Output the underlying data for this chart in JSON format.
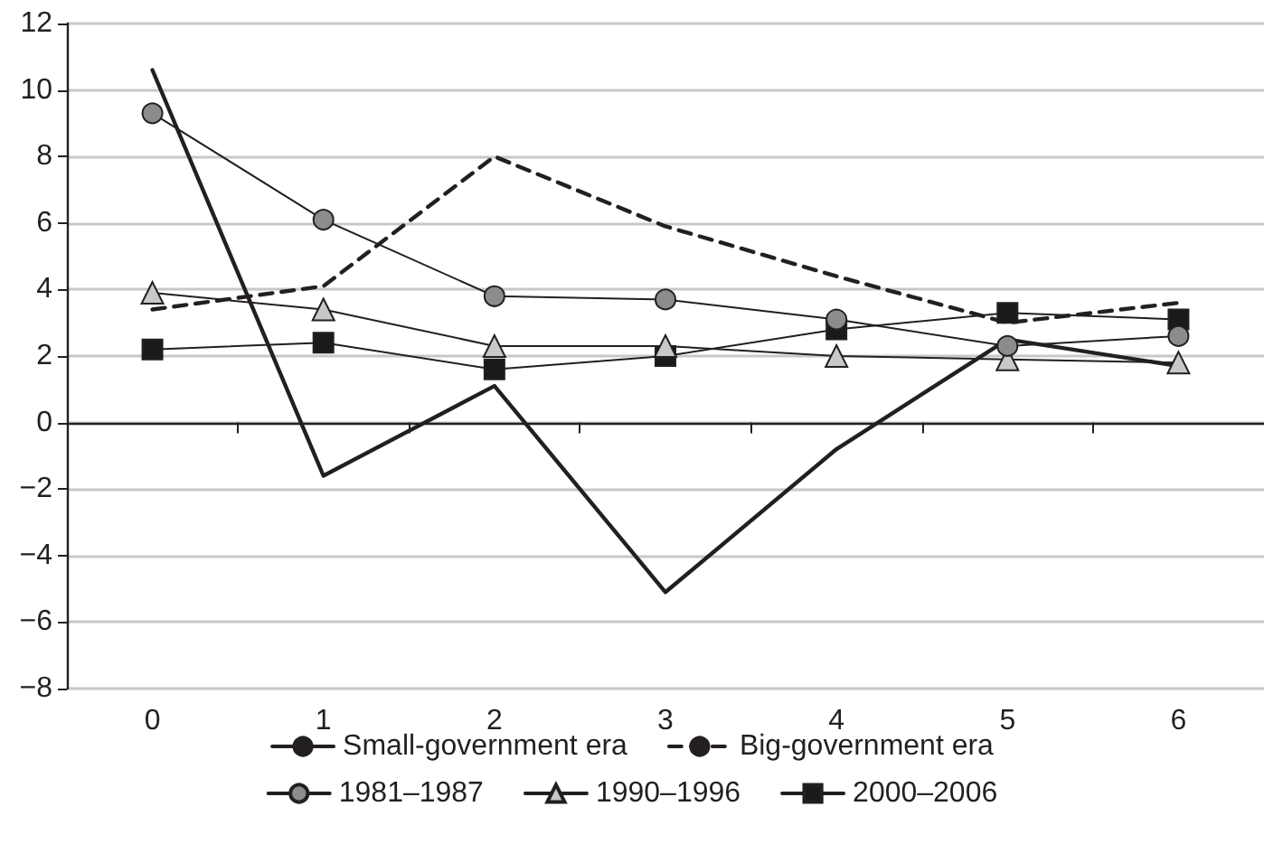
{
  "chart_data": {
    "type": "line",
    "categories": [
      "0",
      "1",
      "2",
      "3",
      "4",
      "5",
      "6"
    ],
    "series": [
      {
        "name": "Small-government era",
        "color": "#231f20",
        "line_style": "solid",
        "marker": "none",
        "values": [
          10.6,
          -1.6,
          1.1,
          -5.1,
          -0.8,
          2.5,
          1.7
        ]
      },
      {
        "name": "Big-government era",
        "color": "#231f20",
        "line_style": "dashed",
        "marker": "none",
        "values": [
          3.4,
          4.1,
          8.0,
          5.9,
          4.4,
          3.0,
          3.6
        ]
      },
      {
        "name": "1981–1987",
        "color": "#8c8c8c",
        "line_style": "solid",
        "marker": "circle",
        "values": [
          9.3,
          6.1,
          3.8,
          3.7,
          3.1,
          2.3,
          2.6
        ]
      },
      {
        "name": "1990–1996",
        "color": "#c8c8c8",
        "line_style": "solid",
        "marker": "triangle",
        "values": [
          3.9,
          3.4,
          2.3,
          2.3,
          2.0,
          1.9,
          1.8
        ]
      },
      {
        "name": "2000–2006",
        "color": "#1a1a1a",
        "line_style": "solid",
        "marker": "square",
        "values": [
          2.2,
          2.4,
          1.6,
          2.0,
          2.8,
          3.3,
          3.1
        ]
      }
    ],
    "ylim": [
      -8,
      12
    ],
    "yticks": [
      -8,
      -6,
      -4,
      -2,
      0,
      2,
      4,
      6,
      8,
      10,
      12
    ],
    "grid": "y",
    "legend": "bottom"
  }
}
